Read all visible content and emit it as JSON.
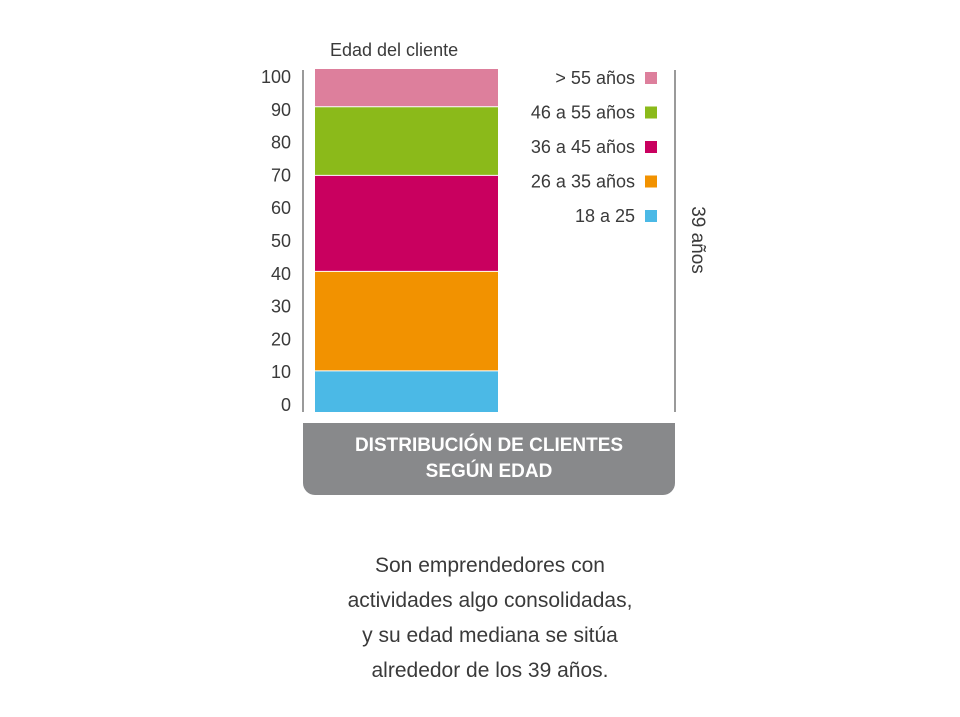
{
  "chart_data": {
    "type": "bar",
    "stacked": true,
    "title": "Edad del cliente",
    "ylim": [
      0,
      100
    ],
    "yticks": [
      0,
      10,
      20,
      30,
      40,
      50,
      60,
      70,
      80,
      90,
      100
    ],
    "segments": [
      {
        "name": "18 a 25",
        "from": 0,
        "to": 12,
        "color": "#4bb9e6"
      },
      {
        "name": "26 a 35 años",
        "from": 12,
        "to": 41,
        "color": "#f29200"
      },
      {
        "name": "36 a 45 años",
        "from": 41,
        "to": 69,
        "color": "#c9005f"
      },
      {
        "name": "46 a 55 años",
        "from": 69,
        "to": 89,
        "color": "#8bba1a"
      },
      {
        "name": "> 55 años",
        "from": 89,
        "to": 100,
        "color": "#dd7f9c"
      }
    ],
    "legend_order": [
      "> 55 años",
      "46 a 55 años",
      "36 a 45 años",
      "26 a 35 años",
      "18 a 25"
    ],
    "legend_placement": "right",
    "median_label": "39 años"
  },
  "caption": {
    "line1": "DISTRIBUCIÓN DE CLIENTES",
    "line2": "SEGÚN EDAD"
  },
  "description": {
    "lines": [
      "Son emprendedores con",
      "actividades algo consolidadas,",
      "y su edad mediana se sitúa",
      "alrededor de los 39 años."
    ]
  },
  "colors": {
    "caption_bg": "#88898b",
    "axis_line": "#9a9a9a",
    "text": "#3a3a3a"
  }
}
